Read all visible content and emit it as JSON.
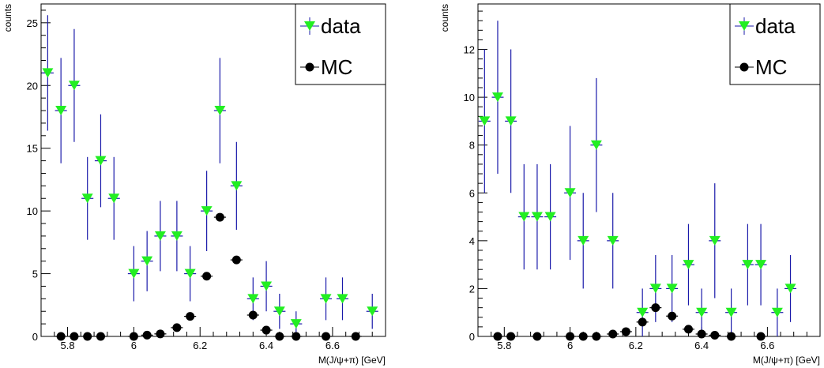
{
  "chart_data": [
    {
      "type": "scatter",
      "title": "",
      "xlabel": "M(J/ψ+π) [GeV]",
      "ylabel": "counts",
      "xlim": [
        5.72,
        6.76
      ],
      "ylim": [
        0,
        26.5
      ],
      "x_ticks": [
        5.8,
        6.0,
        6.2,
        6.4,
        6.6
      ],
      "x_tick_labels": [
        "5.8",
        "6",
        "6.2",
        "6.4",
        "6.6"
      ],
      "y_ticks": [
        0,
        5,
        10,
        15,
        20,
        25
      ],
      "y_tick_labels": [
        "0",
        "5",
        "10",
        "15",
        "20",
        "25"
      ],
      "grid": false,
      "legend_position": "top-right",
      "series": [
        {
          "name": "data",
          "marker": "triangle-down",
          "color": "#22ee22",
          "error_color": "#1a1aaa",
          "x": [
            5.74,
            5.78,
            5.82,
            5.86,
            5.9,
            5.94,
            6.0,
            6.04,
            6.08,
            6.13,
            6.17,
            6.22,
            6.26,
            6.31,
            6.36,
            6.4,
            6.44,
            6.49,
            6.58,
            6.63,
            6.72
          ],
          "y": [
            21,
            18,
            20,
            11,
            14,
            11,
            5,
            6,
            8,
            8,
            5,
            10,
            18,
            12,
            3,
            4,
            2,
            1,
            3,
            3,
            2
          ],
          "yerr": [
            4.6,
            4.2,
            4.5,
            3.3,
            3.7,
            3.3,
            2.2,
            2.4,
            2.8,
            2.8,
            2.2,
            3.2,
            4.2,
            3.5,
            1.7,
            2.0,
            1.4,
            1.0,
            1.7,
            1.7,
            1.4
          ]
        },
        {
          "name": "MC",
          "marker": "circle",
          "color": "#000000",
          "x": [
            5.78,
            5.82,
            5.86,
            5.9,
            6.0,
            6.04,
            6.08,
            6.13,
            6.17,
            6.22,
            6.26,
            6.31,
            6.36,
            6.4,
            6.44,
            6.49,
            6.58,
            6.67
          ],
          "y": [
            0,
            0,
            0,
            0,
            0,
            0.1,
            0.2,
            0.7,
            1.6,
            4.8,
            9.5,
            6.1,
            1.7,
            0.5,
            0,
            0,
            0,
            0
          ]
        }
      ]
    },
    {
      "type": "scatter",
      "title": "",
      "xlabel": "M(J/ψ+π) [GeV]",
      "ylabel": "counts",
      "xlim": [
        5.72,
        6.76
      ],
      "ylim": [
        0,
        13.9
      ],
      "x_ticks": [
        5.8,
        6.0,
        6.2,
        6.4,
        6.6
      ],
      "x_tick_labels": [
        "5.8",
        "6",
        "6.2",
        "6.4",
        "6.6"
      ],
      "y_ticks": [
        0,
        2,
        4,
        6,
        8,
        10,
        12
      ],
      "y_tick_labels": [
        "0",
        "2",
        "4",
        "6",
        "8",
        "10",
        "12"
      ],
      "grid": false,
      "legend_position": "top-right",
      "series": [
        {
          "name": "data",
          "marker": "triangle-down",
          "color": "#22ee22",
          "error_color": "#1a1aaa",
          "x": [
            5.74,
            5.78,
            5.82,
            5.86,
            5.9,
            5.94,
            6.0,
            6.04,
            6.08,
            6.13,
            6.22,
            6.26,
            6.31,
            6.36,
            6.4,
            6.44,
            6.49,
            6.54,
            6.58,
            6.63,
            6.67
          ],
          "y": [
            9,
            10,
            9,
            5,
            5,
            5,
            6,
            4,
            8,
            4,
            1,
            2,
            2,
            3,
            1,
            4,
            1,
            3,
            3,
            1,
            2
          ],
          "yerr": [
            3.0,
            3.2,
            3.0,
            2.2,
            2.2,
            2.2,
            2.8,
            2.0,
            2.8,
            2.0,
            1.0,
            1.4,
            1.4,
            1.7,
            1.0,
            2.4,
            1.0,
            1.7,
            1.7,
            1.0,
            1.4
          ]
        },
        {
          "name": "MC",
          "marker": "circle",
          "color": "#000000",
          "x": [
            5.78,
            5.82,
            5.9,
            6.0,
            6.04,
            6.08,
            6.13,
            6.17,
            6.22,
            6.26,
            6.31,
            6.36,
            6.4,
            6.44,
            6.49,
            6.58
          ],
          "y": [
            0,
            0,
            0,
            0,
            0,
            0,
            0.1,
            0.2,
            0.6,
            1.2,
            0.85,
            0.3,
            0.1,
            0.05,
            0,
            0
          ]
        }
      ]
    }
  ]
}
